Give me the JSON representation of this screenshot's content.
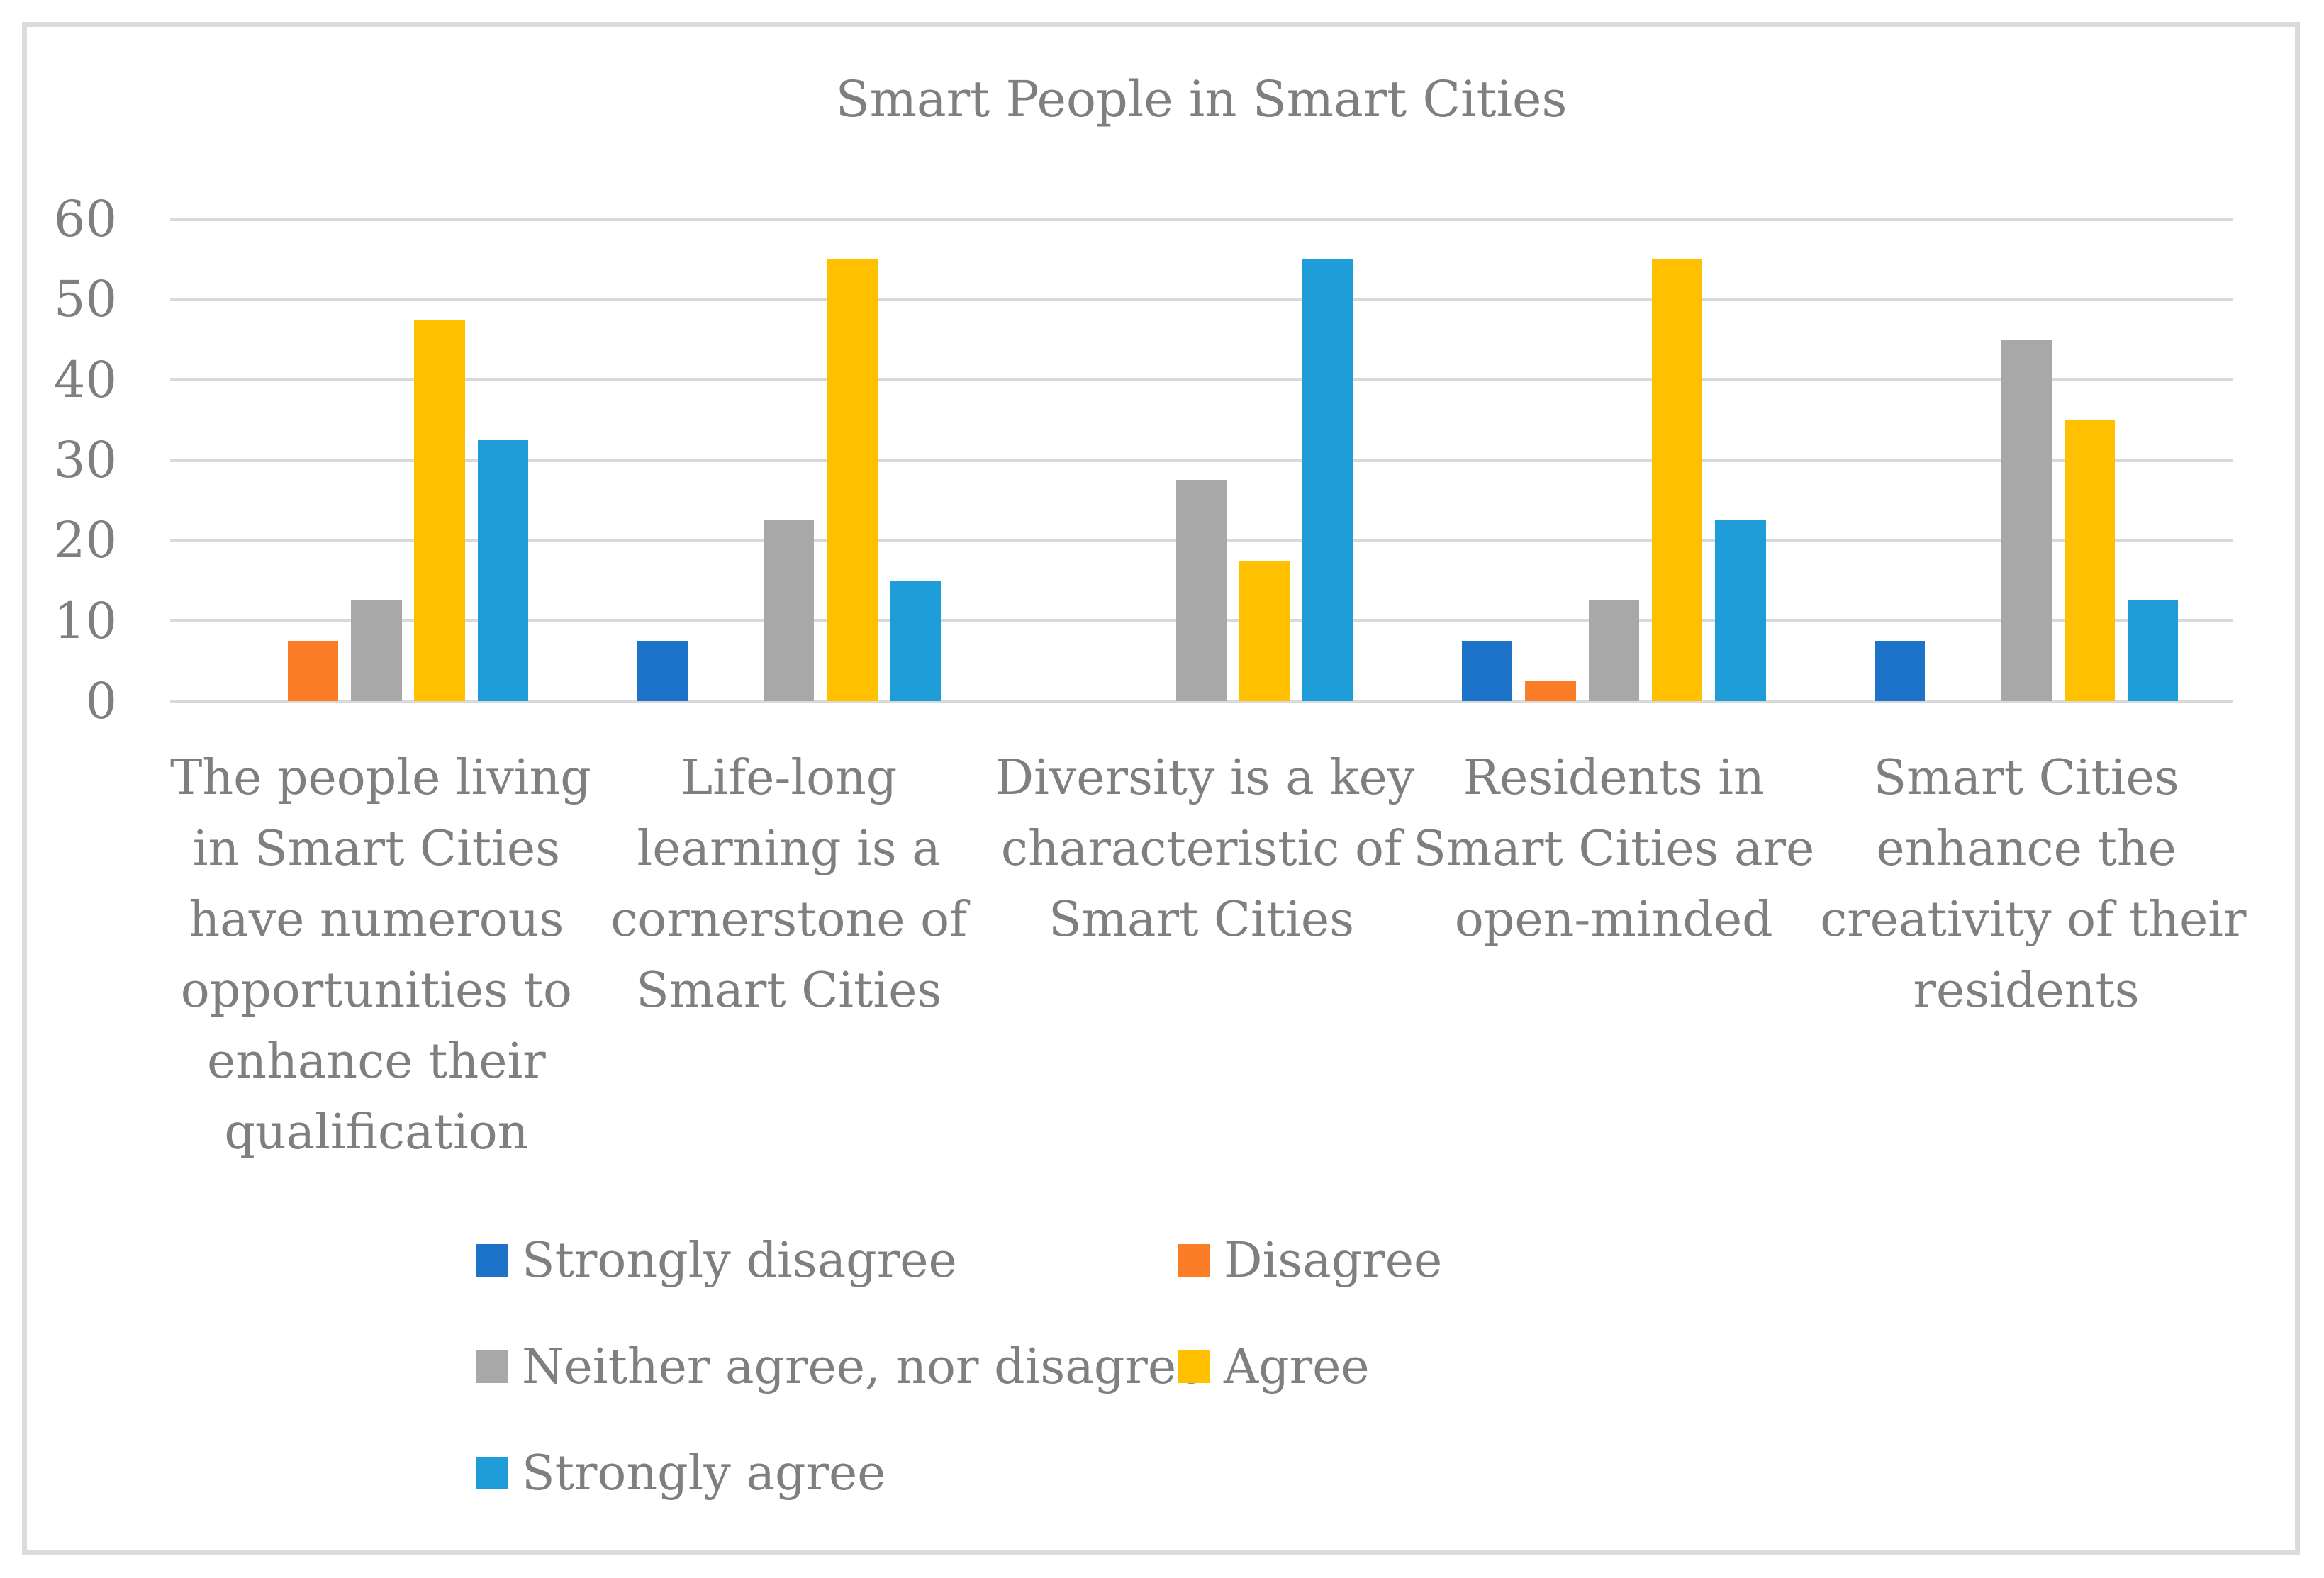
{
  "chart_data": {
    "type": "bar",
    "title": "Smart People in Smart Cities",
    "grid": true,
    "legend_position": "bottom",
    "colors": {
      "background": "#FFFFFF",
      "figure_border": "#DBDBDB",
      "gridline": "#D9D9D9",
      "text": "#7F7F7F"
    },
    "y_axis": {
      "min": 0,
      "max": 60,
      "step": 10,
      "tick_labels": [
        "0",
        "10",
        "20",
        "30",
        "40",
        "50",
        "60"
      ]
    },
    "categories": [
      "The people living in Smart Cities have numerous opportunities to enhance their qualification",
      "Life-long learning is a cornerstone of Smart Cities",
      "Diversity is a key characteristic of Smart Cities",
      "Residents in Smart Cities are open-minded",
      "Smart Cities enhance the creativity of their residents"
    ],
    "category_lines": [
      [
        "The people living",
        "in Smart Cities",
        "have numerous",
        "opportunities to",
        "enhance their",
        "qualification"
      ],
      [
        "Life-long",
        "learning is a",
        "cornerstone of",
        "Smart Cities"
      ],
      [
        "Diversity is a key",
        "characteristic of",
        "Smart Cities"
      ],
      [
        "Residents in",
        "Smart Cities are",
        "open-minded"
      ],
      [
        "Smart Cities",
        "enhance the",
        "creativity of their",
        "residents"
      ]
    ],
    "series": [
      {
        "name": "Strongly disagree",
        "key": "strongly-disagree",
        "color": "#1C73C7",
        "values": [
          0,
          7.5,
          0,
          7.5,
          7.5
        ]
      },
      {
        "name": "Disagree",
        "key": "disagree",
        "color": "#FC7D28",
        "values": [
          7.5,
          0,
          0,
          2.5,
          0
        ]
      },
      {
        "name": "Neither agree, nor disagree",
        "key": "neither",
        "color": "#A8A8A8",
        "values": [
          12.5,
          22.5,
          27.5,
          12.5,
          45
        ]
      },
      {
        "name": "Agree",
        "key": "agree",
        "color": "#FFC000",
        "values": [
          47.5,
          55,
          17.5,
          55,
          35
        ]
      },
      {
        "name": "Strongly agree",
        "key": "strongly-agree",
        "color": "#1F9DD9",
        "values": [
          32.5,
          15,
          55,
          22.5,
          12.5
        ]
      }
    ],
    "legend": [
      {
        "label": "Strongly disagree",
        "color": "#1C73C7"
      },
      {
        "label": "Disagree",
        "color": "#FC7D28"
      },
      {
        "label": "Neither agree, nor disagree",
        "color": "#A8A8A8"
      },
      {
        "label": "Agree",
        "color": "#FFC000"
      },
      {
        "label": "Strongly agree",
        "color": "#1F9DD9"
      }
    ]
  }
}
